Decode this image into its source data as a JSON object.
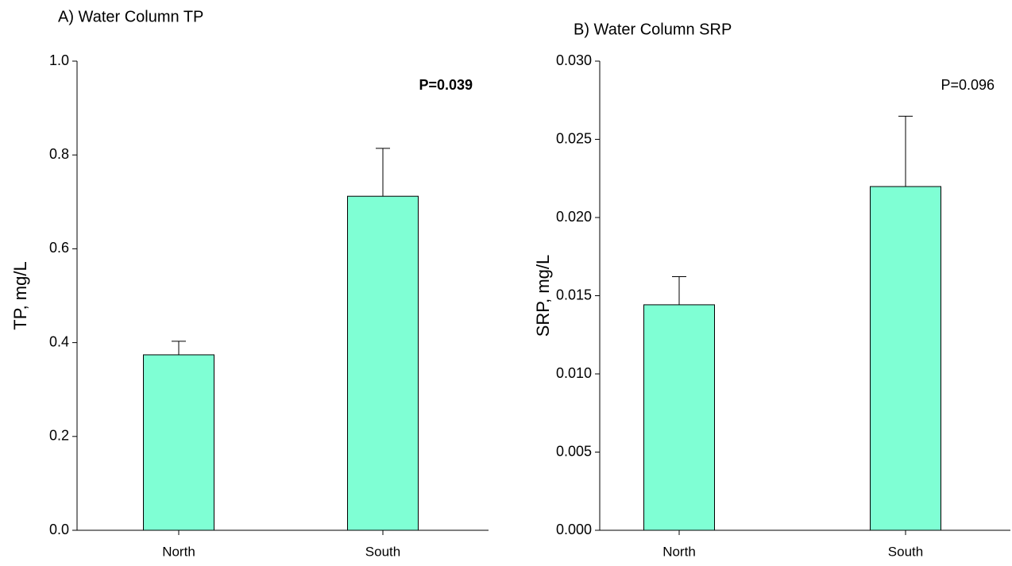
{
  "chart_data": [
    {
      "type": "bar",
      "title": "A) Water Column TP",
      "y_label": "TP, mg/L",
      "categories": [
        "North",
        "South"
      ],
      "values": [
        0.374,
        0.712
      ],
      "errors": [
        0.029,
        0.102
      ],
      "color": "#7fffd4",
      "ylim": [
        0,
        1.0
      ],
      "yticks": [
        {
          "value": 0,
          "label": "0.0"
        },
        0.2,
        0.4,
        0.6,
        0.8,
        {
          "value": 1.0,
          "label": "1.0"
        }
      ],
      "annotation": "P=0.039",
      "annotation_weight": "bold"
    },
    {
      "type": "bar",
      "title": "B) Water Column SRP",
      "y_label": "SRP, mg/L",
      "categories": [
        "North",
        "South"
      ],
      "values": [
        0.01442,
        0.02198
      ],
      "errors": [
        0.0018,
        0.0045
      ],
      "color": "#7fffd4",
      "ylim": [
        0,
        0.03
      ],
      "yticks": [
        {
          "value": 0,
          "label": "0.000"
        },
        {
          "value": 0.005,
          "label": "0.005"
        },
        {
          "value": 0.01,
          "label": "0.010"
        },
        {
          "value": 0.015,
          "label": "0.015"
        },
        {
          "value": 0.02,
          "label": "0.020"
        },
        {
          "value": 0.025,
          "label": "0.025"
        },
        {
          "value": 0.03,
          "label": "0.030"
        }
      ],
      "annotation": "P=0.096",
      "annotation_weight": "normal"
    }
  ]
}
